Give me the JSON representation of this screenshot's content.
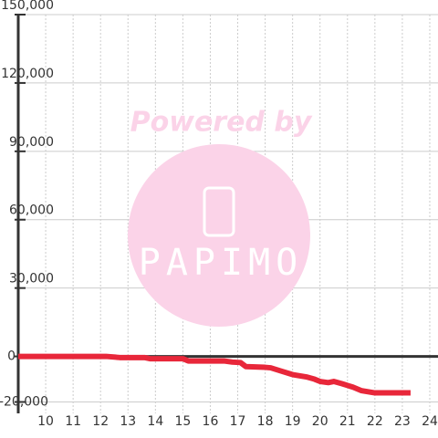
{
  "chart_data": {
    "type": "line",
    "watermark": {
      "title": "Powered by",
      "brand": "PAPIMO"
    },
    "x": [
      9,
      12.2,
      12.7,
      13.6,
      13.8,
      15,
      15.2,
      16.5,
      16.8,
      17.1,
      17.3,
      18,
      18.2,
      18.6,
      19,
      19.5,
      19.8,
      20,
      20.3,
      20.5,
      20.8,
      21.2,
      21.5,
      22,
      23.3
    ],
    "series": [
      {
        "color": "#e8273a",
        "values": [
          0,
          0,
          -500,
          -500,
          -1000,
          -1000,
          -2000,
          -2000,
          -2500,
          -2700,
          -4500,
          -4800,
          -5000,
          -6500,
          -8000,
          -9000,
          -10000,
          -11000,
          -11500,
          -11000,
          -12000,
          -13500,
          -15000,
          -16000,
          -16000
        ]
      }
    ],
    "xlim": [
      9,
      24.3
    ],
    "xticks": [
      10,
      11,
      12,
      13,
      14,
      15,
      16,
      17,
      18,
      19,
      20,
      21,
      22,
      23,
      24
    ],
    "ylim": [
      -25000,
      150000
    ],
    "yticks": [
      {
        "value": -20000,
        "label": "-20,000"
      },
      0,
      {
        "value": 30000,
        "label": "30,000"
      },
      {
        "value": 60000,
        "label": "60,000"
      },
      {
        "value": 90000,
        "label": "90,000"
      },
      {
        "value": 120000,
        "label": "120,000"
      },
      {
        "value": 150000,
        "label": "150,000"
      }
    ],
    "grid": true
  }
}
